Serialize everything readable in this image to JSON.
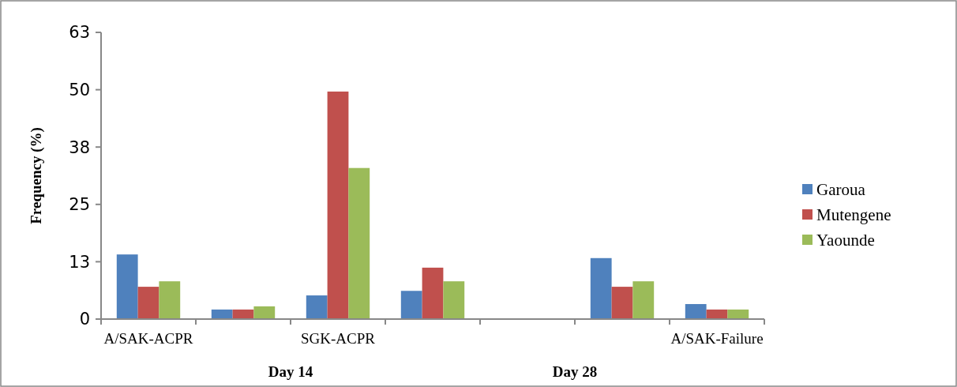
{
  "chart_data": {
    "type": "bar",
    "ylabel": "Frequency (%)",
    "categories": [
      "A/SAK-ACPR",
      null,
      "SGK-ACPR",
      null,
      null,
      null,
      "A/SAK-Failure"
    ],
    "series": [
      {
        "name": "Garoua",
        "color": "#4f81bd",
        "values": [
          14.2,
          2.1,
          5.2,
          6.2,
          null,
          13.4,
          3.3
        ]
      },
      {
        "name": "Mutengene",
        "color": "#c0504d",
        "values": [
          7.1,
          2.1,
          50,
          11.3,
          null,
          7.1,
          2.1
        ]
      },
      {
        "name": "Yaounde",
        "color": "#9bbb59",
        "values": [
          8.3,
          2.8,
          33.2,
          8.3,
          null,
          8.3,
          2.1
        ]
      }
    ],
    "ylim": [
      0,
      63
    ],
    "yticks": [
      0,
      {
        "value": 12.6,
        "label": "13"
      },
      {
        "value": 25.2,
        "label": "25"
      },
      {
        "value": 37.8,
        "label": "38"
      },
      {
        "value": 50.4,
        "label": "50"
      },
      {
        "value": 63,
        "label": "63"
      }
    ],
    "annotations": [
      "Day 14",
      "Day 28"
    ],
    "legend": "right",
    "grid": false
  }
}
